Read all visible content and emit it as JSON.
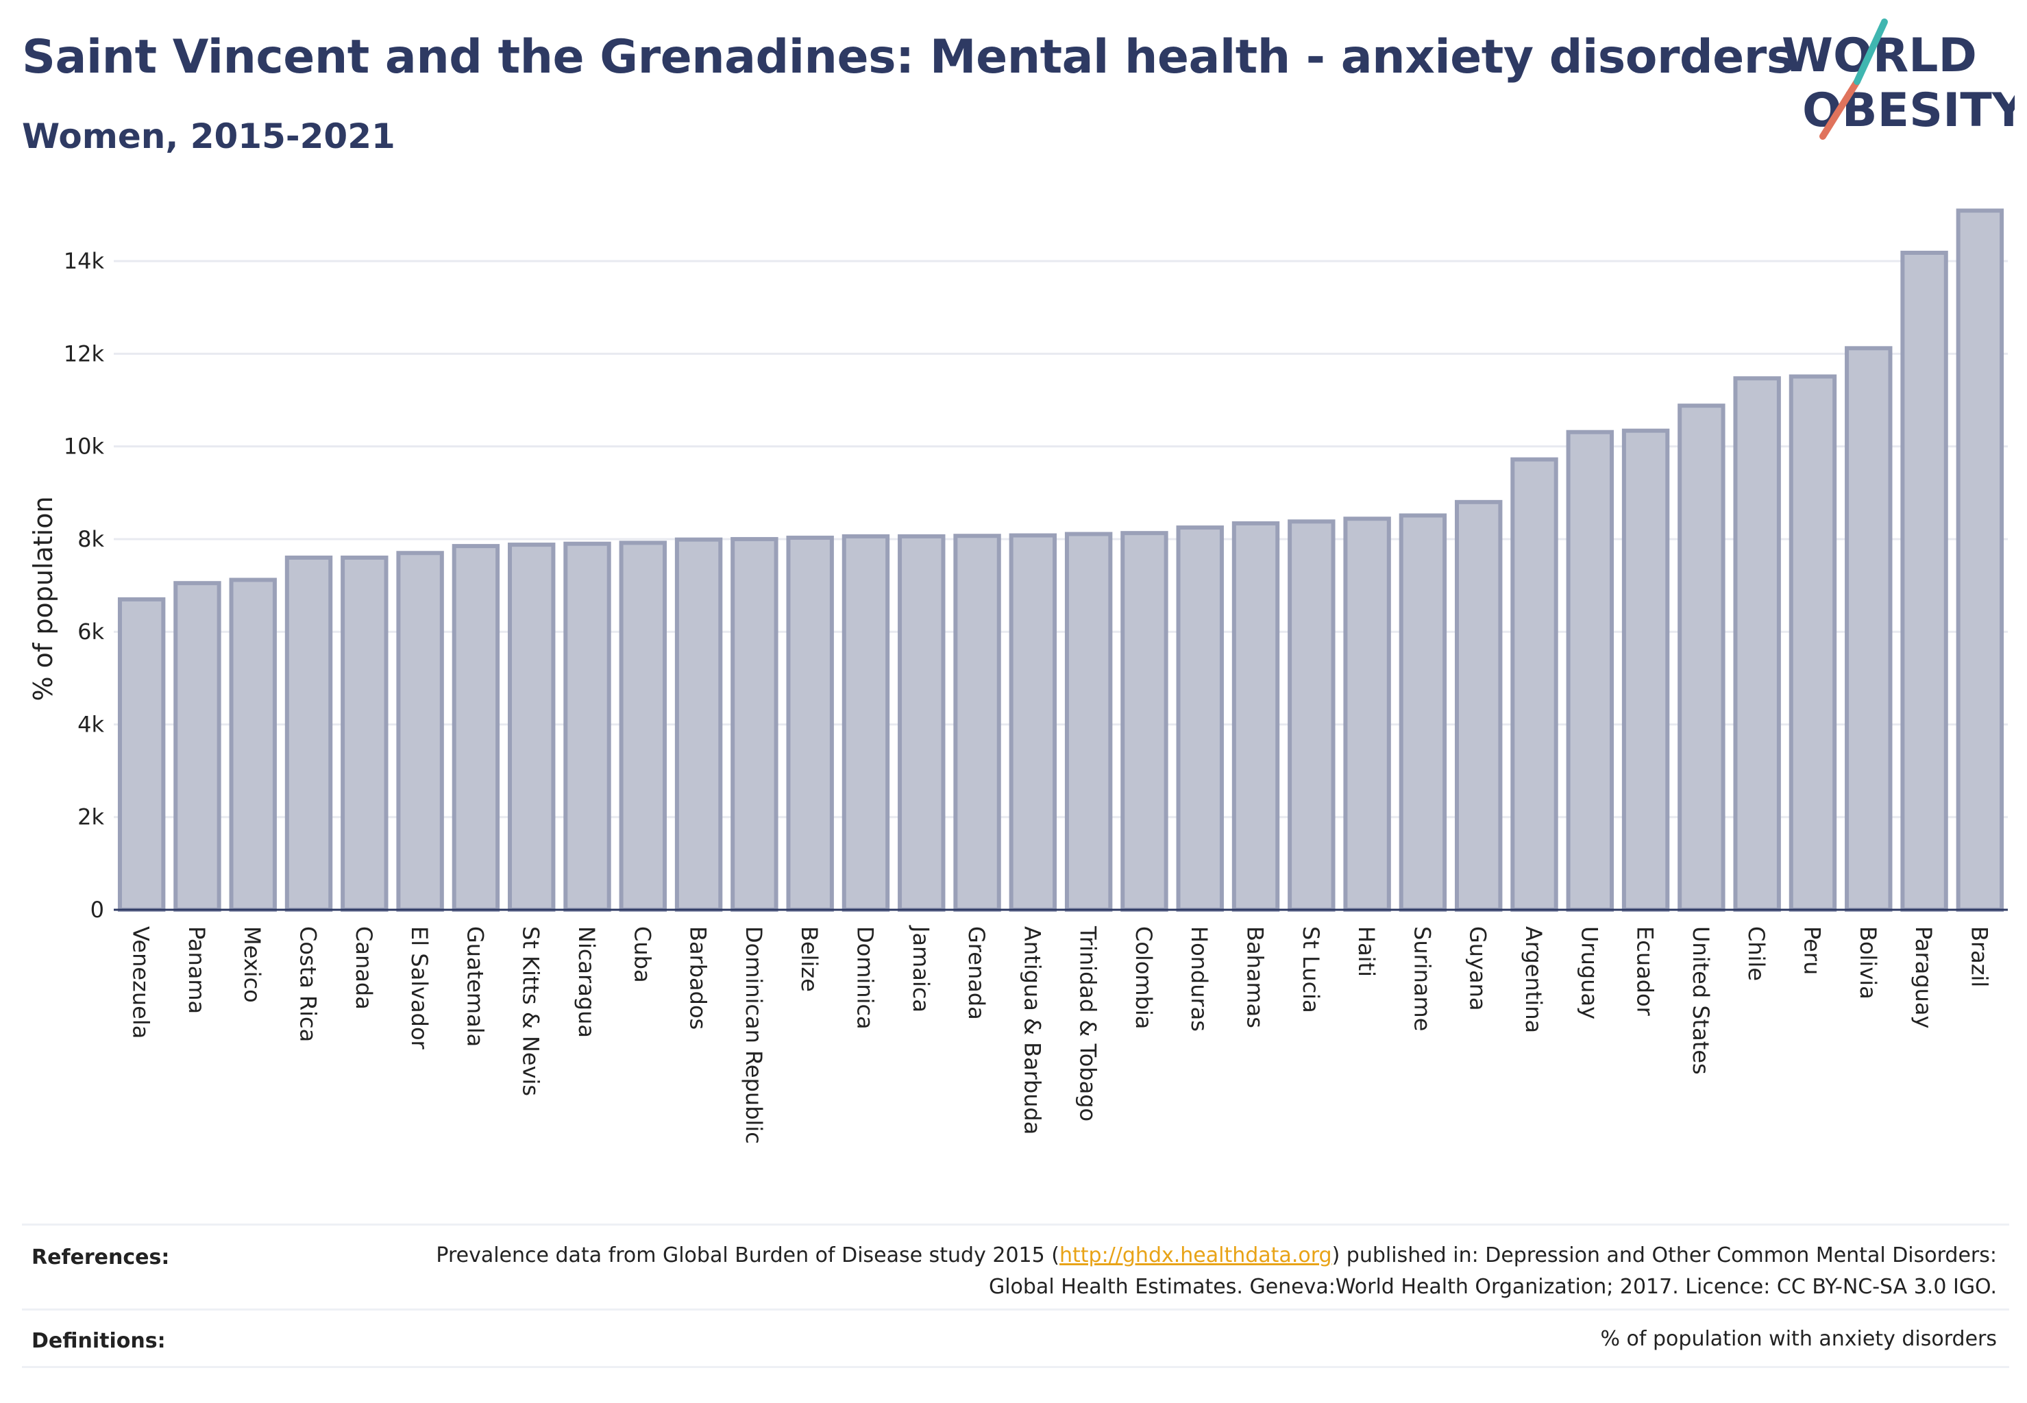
{
  "header": {
    "title": "Saint Vincent and the Grenadines: Mental health - anxiety disorders",
    "subtitle": "Women, 2015-2021"
  },
  "logo": {
    "line1": "WORLD",
    "line2": "OBESITY",
    "accent": "#e0735c",
    "accent2": "#3fb6b0"
  },
  "colors": {
    "bar_fill": "#bfc3d1",
    "bar_stroke": "#9aa0b8",
    "text_dark": "#2e3a63",
    "grid": "#e8eaf0"
  },
  "chart_data": {
    "type": "bar",
    "ylabel": "% of population",
    "ylim": [
      0,
      15200
    ],
    "yticks": [
      0,
      2000,
      4000,
      6000,
      8000,
      10000,
      12000,
      14000
    ],
    "ytick_labels": [
      "0",
      "2k",
      "4k",
      "6k",
      "8k",
      "10k",
      "12k",
      "14k"
    ],
    "grid": true,
    "categories": [
      "Venezuela",
      "Panama",
      "Mexico",
      "Costa Rica",
      "Canada",
      "El Salvador",
      "Guatemala",
      "St Kitts & Nevis",
      "Nicaragua",
      "Cuba",
      "Barbados",
      "Dominican Republic",
      "Belize",
      "Dominica",
      "Jamaica",
      "Grenada",
      "Antigua & Barbuda",
      "Trinidad & Tobago",
      "Colombia",
      "Honduras",
      "Bahamas",
      "St Lucia",
      "Haiti",
      "Suriname",
      "Guyana",
      "Argentina",
      "Uruguay",
      "Ecuador",
      "United States",
      "Chile",
      "Peru",
      "Bolivia",
      "Paraguay",
      "Brazil"
    ],
    "values": [
      6700,
      7050,
      7120,
      7600,
      7600,
      7700,
      7850,
      7880,
      7900,
      7920,
      7990,
      8000,
      8030,
      8060,
      8060,
      8070,
      8080,
      8110,
      8130,
      8250,
      8340,
      8380,
      8440,
      8510,
      8800,
      9720,
      10310,
      10340,
      10880,
      11470,
      11510,
      12120,
      14180,
      15090
    ]
  },
  "footer": {
    "references_label": "References:",
    "references_text_before": "Prevalence data from Global Burden of Disease study 2015 (",
    "references_link": "http://ghdx.healthdata.org",
    "references_text_after": ") published in: Depression and Other Common Mental Disorders: Global Health Estimates. Geneva:World Health Organization; 2017. Licence: CC BY-NC-SA 3.0 IGO.",
    "definitions_label": "Definitions:",
    "definitions_text": "% of population with anxiety disorders"
  }
}
